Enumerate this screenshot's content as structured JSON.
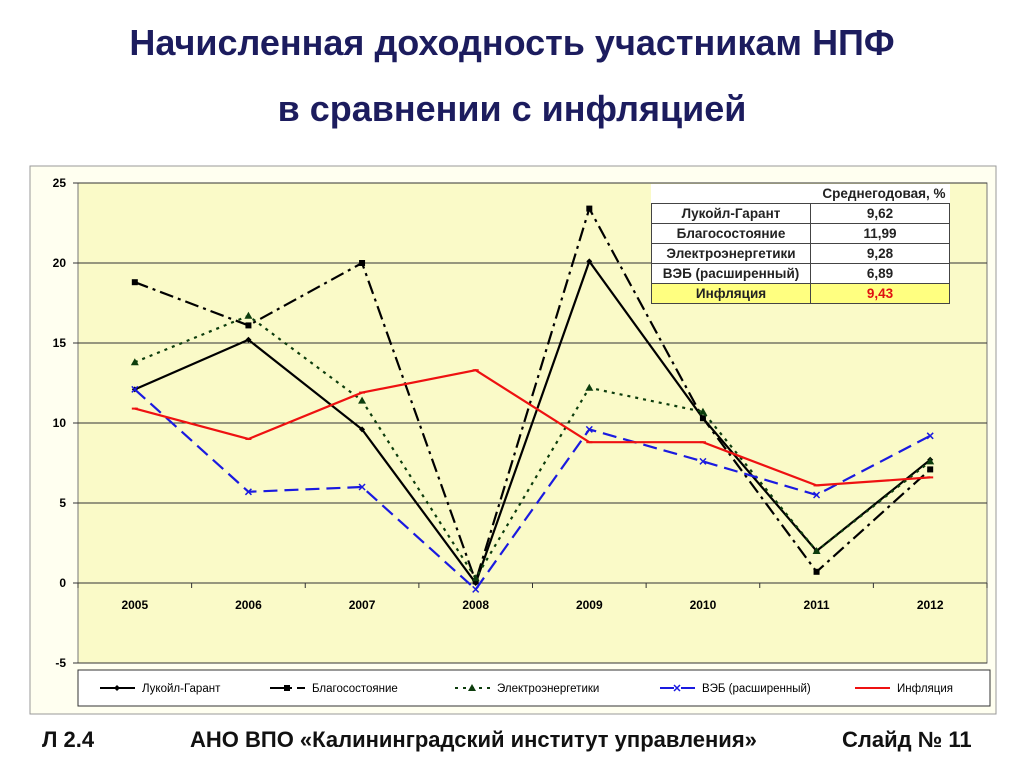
{
  "title": {
    "line1": "Начисленная доходность участникам НПФ",
    "line2": "в сравнении с инфляцией"
  },
  "chart_data": {
    "type": "line",
    "categories": [
      "2005",
      "2006",
      "2007",
      "2008",
      "2009",
      "2010",
      "2011",
      "2012"
    ],
    "ylim": [
      -5,
      25
    ],
    "yticks": [
      "-5",
      "0",
      "5",
      "10",
      "15",
      "20",
      "25"
    ],
    "grid": true,
    "legend_position": "bottom",
    "series": [
      {
        "name": "Лукойл-Гарант",
        "values": [
          12.1,
          15.2,
          9.6,
          0,
          20.1,
          10.3,
          2.0,
          7.7
        ],
        "color": "#000000",
        "dash": "",
        "marker": "diamond"
      },
      {
        "name": "Благосостояние",
        "values": [
          18.8,
          16.1,
          20.0,
          0.1,
          23.4,
          10.3,
          0.7,
          7.1
        ],
        "color": "#000000",
        "dash": "14,5,3,5",
        "marker": "square"
      },
      {
        "name": "Электроэнергетики",
        "values": [
          13.8,
          16.7,
          11.4,
          0.3,
          12.2,
          10.7,
          2.0,
          7.6
        ],
        "color": "#0d3d0d",
        "dash": "3,5",
        "marker": "triangle"
      },
      {
        "name": "ВЭБ (расширенный)",
        "values": [
          12.1,
          5.7,
          6.0,
          -0.4,
          9.6,
          7.6,
          5.5,
          9.2
        ],
        "color": "#1a1ae0",
        "dash": "14,7",
        "marker": "x"
      },
      {
        "name": "Инфляция",
        "values": [
          10.9,
          9.0,
          11.9,
          13.3,
          8.8,
          8.8,
          6.1,
          6.6
        ],
        "color": "#ee1111",
        "dash": "",
        "marker": "dash"
      }
    ]
  },
  "table": {
    "header": "Среднегодовая, %",
    "rows": [
      {
        "name": "Лукойл-Гарант",
        "value": "9,62"
      },
      {
        "name": "Благосостояние",
        "value": "11,99"
      },
      {
        "name": "Электроэнергетики",
        "value": "9,28"
      },
      {
        "name": "ВЭБ (расширенный)",
        "value": "6,89"
      },
      {
        "name": "Инфляция",
        "value": "9,43"
      }
    ]
  },
  "footer": {
    "left": "Л 2.4",
    "center": "АНО ВПО «Калининградский институт управления»",
    "right": "Слайд № 11"
  }
}
